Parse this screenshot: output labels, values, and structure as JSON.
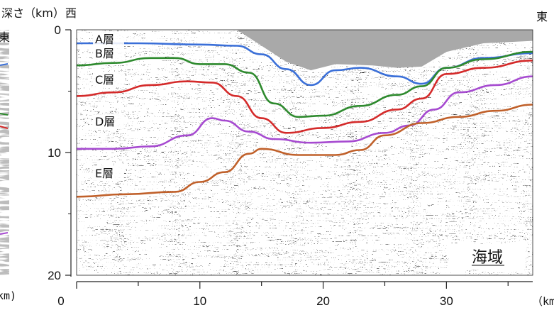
{
  "y_axis": {
    "label": "深さ（km）",
    "ticks": [
      "0",
      "10",
      "20"
    ],
    "tick_values": [
      0,
      10,
      20
    ],
    "range": [
      0,
      20
    ]
  },
  "x_axis": {
    "unit": "（km）",
    "ticks": [
      "0",
      "10",
      "20",
      "30"
    ],
    "tick_values": [
      0,
      10,
      20,
      30
    ],
    "range": [
      0,
      37
    ]
  },
  "direction": {
    "west": "西",
    "east": "東"
  },
  "region_label": "海域",
  "layers": [
    {
      "label": "A層",
      "color": null
    },
    {
      "label": "B層",
      "color": "#3a6fd8"
    },
    {
      "label": "C層",
      "color": "#d42a2a"
    },
    {
      "label": "D層",
      "color": "#a64ad0"
    },
    {
      "label": "E層",
      "color": "#c0602a"
    }
  ],
  "horizons": [
    {
      "name": "B層 base",
      "color": "#3a6fd8",
      "points": [
        [
          0,
          1.1
        ],
        [
          5,
          1.1
        ],
        [
          10,
          1.2
        ],
        [
          13,
          1.3
        ],
        [
          15,
          2.0
        ],
        [
          17,
          3.2
        ],
        [
          19,
          4.5
        ],
        [
          21,
          3.3
        ],
        [
          23,
          3.1
        ],
        [
          26,
          3.8
        ],
        [
          28,
          4.4
        ],
        [
          30,
          3.1
        ],
        [
          33,
          2.3
        ],
        [
          37,
          1.9
        ]
      ]
    },
    {
      "name": "C層 top",
      "color": "#2e8a2e",
      "points": [
        [
          0,
          2.9
        ],
        [
          3,
          2.7
        ],
        [
          6,
          2.3
        ],
        [
          8,
          2.3
        ],
        [
          10,
          2.8
        ],
        [
          12,
          2.8
        ],
        [
          14,
          3.5
        ],
        [
          16,
          6.0
        ],
        [
          18,
          7.1
        ],
        [
          20,
          7.0
        ],
        [
          23,
          6.2
        ],
        [
          26,
          5.3
        ],
        [
          28,
          4.6
        ],
        [
          30,
          3.1
        ],
        [
          33,
          2.4
        ],
        [
          37,
          1.8
        ]
      ]
    },
    {
      "name": "C層 base",
      "color": "#d42a2a",
      "points": [
        [
          0,
          5.4
        ],
        [
          3,
          5.1
        ],
        [
          6,
          4.5
        ],
        [
          9,
          4.2
        ],
        [
          11,
          4.3
        ],
        [
          13,
          5.4
        ],
        [
          15,
          7.2
        ],
        [
          17,
          8.4
        ],
        [
          20,
          8.0
        ],
        [
          23,
          7.5
        ],
        [
          26,
          6.5
        ],
        [
          28,
          5.6
        ],
        [
          30,
          3.6
        ],
        [
          33,
          3.1
        ],
        [
          37,
          2.5
        ]
      ]
    },
    {
      "name": "D層 base",
      "color": "#a64ad0",
      "points": [
        [
          0,
          9.7
        ],
        [
          3,
          9.7
        ],
        [
          6,
          9.5
        ],
        [
          9,
          8.6
        ],
        [
          11,
          7.2
        ],
        [
          12,
          7.4
        ],
        [
          14,
          8.3
        ],
        [
          16,
          8.9
        ],
        [
          19,
          9.2
        ],
        [
          22,
          9.1
        ],
        [
          25,
          8.4
        ],
        [
          27,
          7.8
        ],
        [
          29,
          6.5
        ],
        [
          31,
          5.1
        ],
        [
          34,
          4.5
        ],
        [
          37,
          3.8
        ]
      ]
    },
    {
      "name": "E層 top",
      "color": "#c0602a",
      "points": [
        [
          0,
          13.6
        ],
        [
          4,
          13.4
        ],
        [
          8,
          13.2
        ],
        [
          10,
          12.4
        ],
        [
          12,
          11.6
        ],
        [
          14,
          10.1
        ],
        [
          15,
          9.7
        ],
        [
          18,
          10.2
        ],
        [
          21,
          10.2
        ],
        [
          23,
          9.8
        ],
        [
          25,
          8.6
        ],
        [
          28,
          7.6
        ],
        [
          31,
          7.1
        ],
        [
          34,
          6.6
        ],
        [
          37,
          6.1
        ]
      ]
    }
  ]
}
